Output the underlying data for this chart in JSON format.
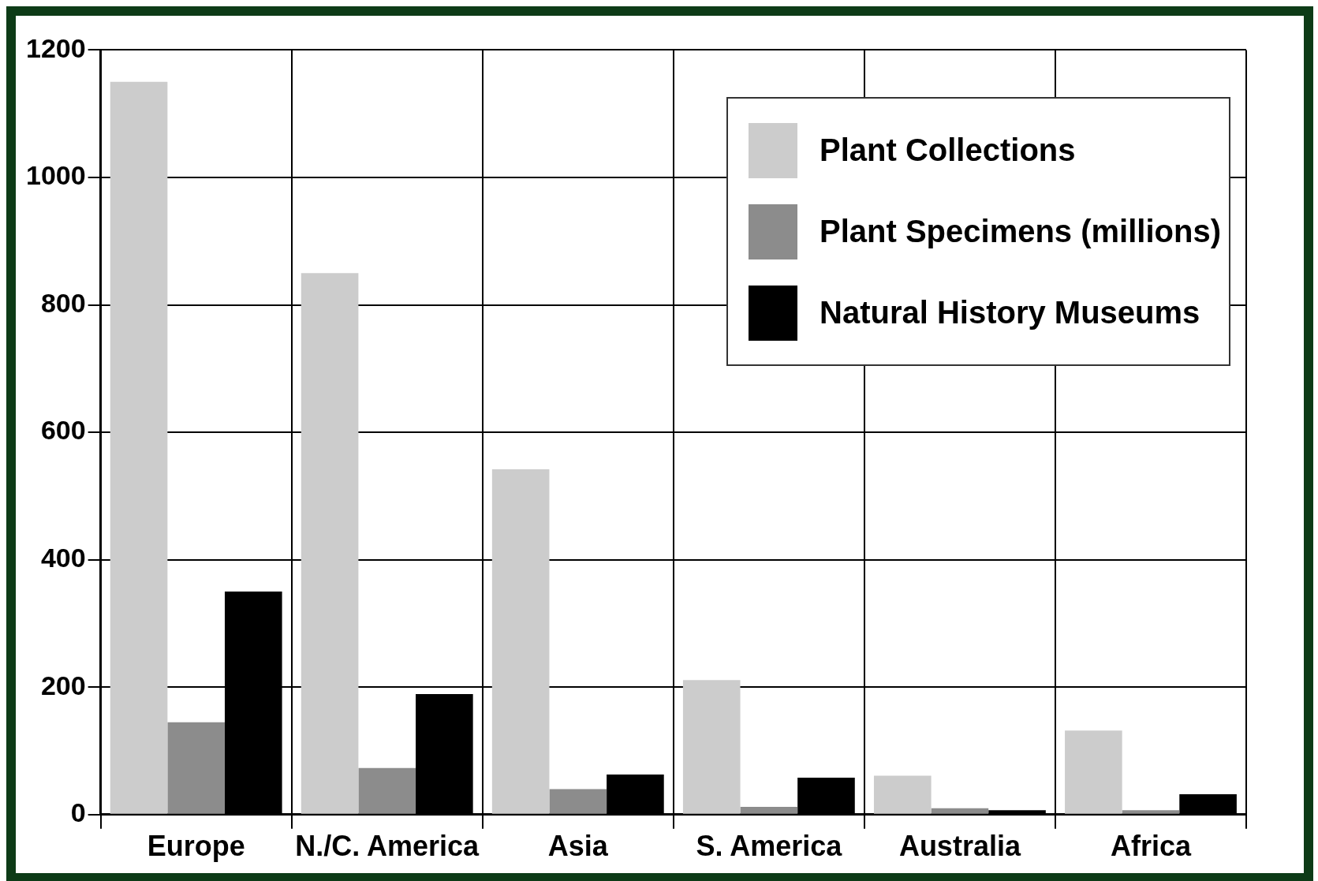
{
  "chart_data": {
    "type": "bar",
    "categories": [
      "Europe",
      "N./C. America",
      "Asia",
      "S. America",
      "Australia",
      "Africa"
    ],
    "series": [
      {
        "name": "Plant Collections",
        "color": "#cccccc",
        "values": [
          1150,
          850,
          542,
          211,
          61,
          132
        ]
      },
      {
        "name": "Plant Specimens (millions)",
        "color": "#8c8c8c",
        "values": [
          145,
          73,
          40,
          12,
          10,
          7
        ]
      },
      {
        "name": "Natural History Museums",
        "color": "#000000",
        "values": [
          350,
          189,
          63,
          58,
          7,
          32
        ]
      }
    ],
    "ylim": [
      0,
      1200
    ],
    "yticks": [
      0,
      200,
      400,
      600,
      800,
      1000,
      1200
    ],
    "grid": true,
    "legend": "top right"
  }
}
